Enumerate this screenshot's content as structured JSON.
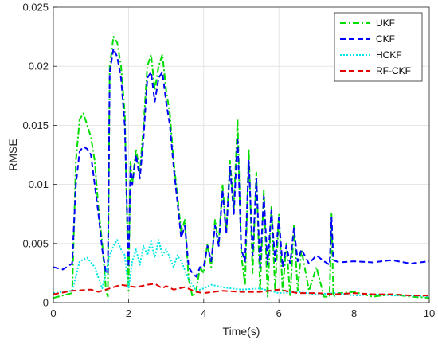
{
  "chart_data": {
    "type": "line",
    "title": "",
    "xlabel": "Time(s)",
    "ylabel": "RMSE",
    "xlim": [
      0,
      10
    ],
    "ylim": [
      0,
      0.025
    ],
    "x_ticks": [
      0,
      2,
      4,
      6,
      8,
      10
    ],
    "x_tick_labels": [
      "0",
      "2",
      "4",
      "6",
      "8",
      "10"
    ],
    "y_ticks": [
      0,
      0.005,
      0.01,
      0.015,
      0.02,
      0.025
    ],
    "y_tick_labels": [
      "0",
      "0.005",
      "0.01",
      "0.015",
      "0.02",
      "0.025"
    ],
    "grid": true,
    "legend_position": "top-right",
    "series": [
      {
        "name": "UKF",
        "color": "#00dd00",
        "dash": "dash-dot",
        "x": [
          0.0,
          0.25,
          0.5,
          0.6,
          0.7,
          0.8,
          0.9,
          1.0,
          1.1,
          1.2,
          1.3,
          1.4,
          1.45,
          1.5,
          1.6,
          1.7,
          1.8,
          1.9,
          2.0,
          2.05,
          2.1,
          2.2,
          2.3,
          2.4,
          2.5,
          2.6,
          2.7,
          2.8,
          2.9,
          3.0,
          3.1,
          3.2,
          3.3,
          3.4,
          3.5,
          3.6,
          3.7,
          3.8,
          3.9,
          4.0,
          4.1,
          4.2,
          4.3,
          4.4,
          4.5,
          4.6,
          4.7,
          4.8,
          4.9,
          5.0,
          5.1,
          5.2,
          5.3,
          5.4,
          5.5,
          5.6,
          5.7,
          5.8,
          5.9,
          6.0,
          6.1,
          6.2,
          6.3,
          6.4,
          6.5,
          6.6,
          6.8,
          7.0,
          7.2,
          7.35,
          7.4,
          7.45,
          7.6,
          8.0,
          8.5,
          9.0,
          9.5,
          10.0
        ],
        "y": [
          0.0004,
          0.0006,
          0.0008,
          0.012,
          0.0155,
          0.016,
          0.015,
          0.014,
          0.012,
          0.008,
          0.005,
          0.001,
          0.0005,
          0.02,
          0.0225,
          0.022,
          0.02,
          0.016,
          0.001,
          0.012,
          0.01,
          0.013,
          0.011,
          0.015,
          0.02,
          0.021,
          0.018,
          0.02,
          0.021,
          0.018,
          0.016,
          0.012,
          0.009,
          0.006,
          0.007,
          0.002,
          0.0005,
          0.001,
          0.003,
          0.0025,
          0.005,
          0.003,
          0.007,
          0.005,
          0.01,
          0.006,
          0.012,
          0.008,
          0.0155,
          0.004,
          0.0015,
          0.013,
          0.0025,
          0.011,
          0.001,
          0.0095,
          0.0005,
          0.0082,
          0.001,
          0.0075,
          0.001,
          0.005,
          0.0005,
          0.0065,
          0.001,
          0.0045,
          0.001,
          0.003,
          0.0005,
          0.0005,
          0.0075,
          0.0005,
          0.0008,
          0.0009,
          0.0005,
          0.0007,
          0.0005,
          0.0004
        ]
      },
      {
        "name": "CKF",
        "color": "#0000ff",
        "dash": "dashed",
        "x": [
          0.0,
          0.25,
          0.5,
          0.6,
          0.7,
          0.8,
          0.9,
          1.0,
          1.1,
          1.2,
          1.3,
          1.4,
          1.45,
          1.5,
          1.6,
          1.7,
          1.8,
          1.9,
          2.0,
          2.05,
          2.1,
          2.2,
          2.3,
          2.4,
          2.5,
          2.6,
          2.7,
          2.8,
          2.9,
          3.0,
          3.1,
          3.2,
          3.3,
          3.4,
          3.5,
          3.6,
          3.7,
          3.8,
          3.9,
          4.0,
          4.1,
          4.2,
          4.3,
          4.4,
          4.5,
          4.6,
          4.7,
          4.8,
          4.9,
          5.0,
          5.1,
          5.2,
          5.3,
          5.4,
          5.5,
          5.6,
          5.7,
          5.8,
          5.9,
          6.0,
          6.1,
          6.2,
          6.3,
          6.4,
          6.5,
          6.6,
          6.8,
          7.0,
          7.2,
          7.35,
          7.4,
          7.45,
          7.6,
          8.0,
          8.5,
          9.0,
          9.5,
          10.0
        ],
        "y": [
          0.003,
          0.0028,
          0.0033,
          0.01,
          0.0128,
          0.0132,
          0.013,
          0.0125,
          0.01,
          0.0075,
          0.0045,
          0.0025,
          0.0025,
          0.0195,
          0.0215,
          0.0208,
          0.019,
          0.015,
          0.003,
          0.0115,
          0.01,
          0.0125,
          0.0105,
          0.014,
          0.019,
          0.0195,
          0.017,
          0.019,
          0.0195,
          0.017,
          0.015,
          0.0115,
          0.0085,
          0.0055,
          0.0065,
          0.003,
          0.0025,
          0.0022,
          0.003,
          0.003,
          0.0048,
          0.0035,
          0.0065,
          0.0048,
          0.0095,
          0.0058,
          0.0115,
          0.0075,
          0.014,
          0.0045,
          0.0035,
          0.012,
          0.004,
          0.0105,
          0.003,
          0.009,
          0.0032,
          0.0078,
          0.0035,
          0.0072,
          0.003,
          0.0048,
          0.0033,
          0.0063,
          0.0035,
          0.0045,
          0.0033,
          0.004,
          0.0035,
          0.0032,
          0.0072,
          0.0036,
          0.0034,
          0.0035,
          0.0034,
          0.0036,
          0.0033,
          0.0035
        ]
      },
      {
        "name": "HCKF",
        "color": "#00e5e5",
        "dash": "dotted",
        "x": [
          0.0,
          0.5,
          0.7,
          0.9,
          1.1,
          1.3,
          1.5,
          1.6,
          1.7,
          1.8,
          1.9,
          2.0,
          2.1,
          2.2,
          2.3,
          2.4,
          2.5,
          2.6,
          2.7,
          2.8,
          2.9,
          3.0,
          3.1,
          3.2,
          3.3,
          3.4,
          3.6,
          3.8,
          4.0,
          4.2,
          4.5,
          5.0,
          5.5,
          6.0,
          6.5,
          7.0,
          7.5,
          8.0,
          8.5,
          9.0,
          9.5,
          10.0
        ],
        "y": [
          0.0008,
          0.001,
          0.0035,
          0.0038,
          0.003,
          0.0012,
          0.004,
          0.0048,
          0.0053,
          0.0045,
          0.004,
          0.0012,
          0.0035,
          0.0045,
          0.0032,
          0.0048,
          0.004,
          0.0052,
          0.0038,
          0.0053,
          0.004,
          0.0045,
          0.0038,
          0.003,
          0.004,
          0.0035,
          0.002,
          0.001,
          0.0012,
          0.0015,
          0.0013,
          0.0011,
          0.0012,
          0.0008,
          0.0009,
          0.0007,
          0.0008,
          0.0006,
          0.0007,
          0.0006,
          0.0006,
          0.0005
        ]
      },
      {
        "name": "RF-CKF",
        "color": "#e00000",
        "dash": "dashed",
        "x": [
          0.0,
          0.5,
          1.0,
          1.2,
          1.5,
          1.8,
          2.0,
          2.2,
          2.5,
          2.7,
          2.9,
          3.0,
          3.2,
          3.5,
          3.8,
          4.0,
          4.5,
          5.0,
          5.5,
          6.0,
          6.5,
          7.0,
          7.5,
          8.0,
          8.5,
          9.0,
          9.5,
          10.0
        ],
        "y": [
          0.0007,
          0.001,
          0.0011,
          0.0009,
          0.0012,
          0.0015,
          0.0014,
          0.0013,
          0.0015,
          0.0016,
          0.0012,
          0.0014,
          0.0011,
          0.0013,
          0.0009,
          0.0008,
          0.001,
          0.0009,
          0.0009,
          0.0011,
          0.0008,
          0.0008,
          0.0007,
          0.0008,
          0.0007,
          0.0007,
          0.0006,
          0.0006
        ]
      }
    ]
  }
}
